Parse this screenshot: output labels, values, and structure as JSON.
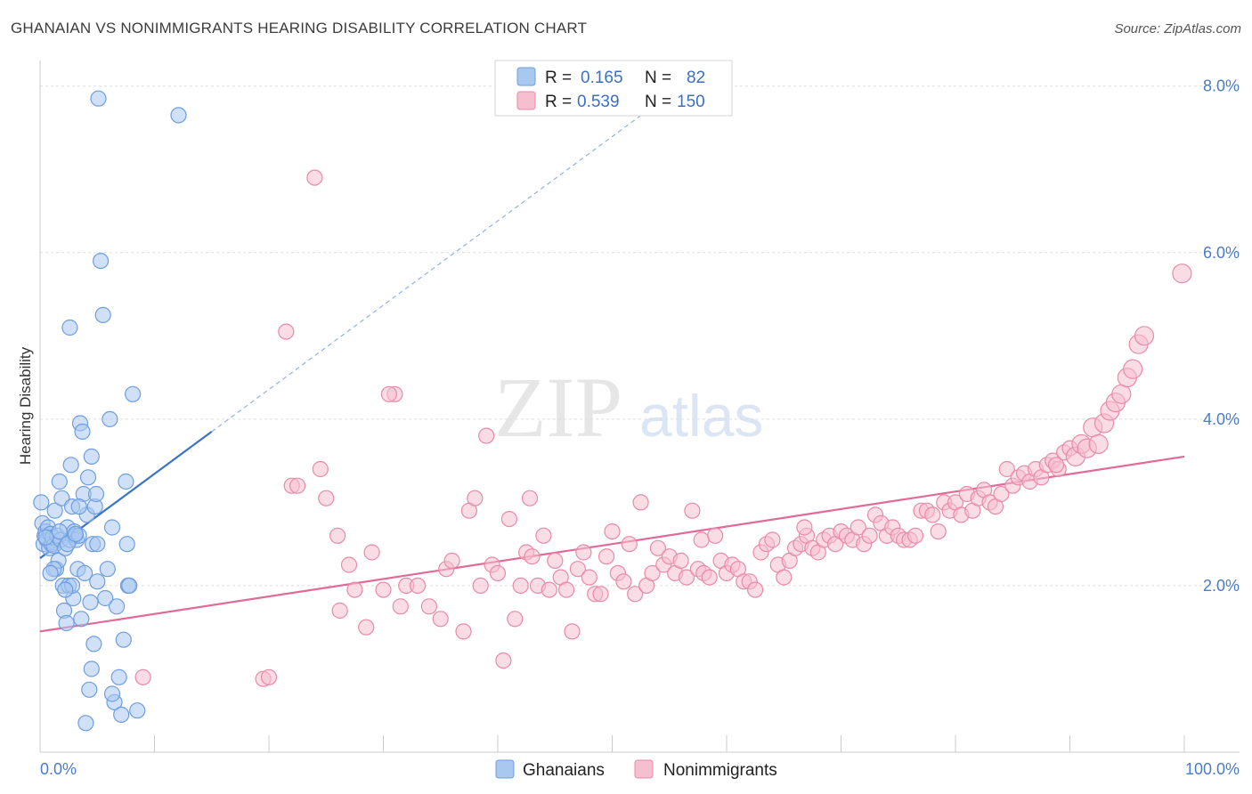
{
  "title": "GHANAIAN VS NONIMMIGRANTS HEARING DISABILITY CORRELATION CHART",
  "source": "Source: ZipAtlas.com",
  "watermark": {
    "zip": "ZIP",
    "atlas": "atlas"
  },
  "legend_top": [
    {
      "r_label": "R =",
      "r_value": "0.165",
      "n_label": "N =",
      "n_value": "82",
      "color": "#a9c8f0",
      "stroke": "#6e9de0"
    },
    {
      "r_label": "R =",
      "r_value": "0.539",
      "n_label": "N =",
      "n_value": "150",
      "color": "#f6bfd0",
      "stroke": "#e88aa8"
    }
  ],
  "legend_bottom": [
    {
      "label": "Ghanaians",
      "color": "#a9c8f0",
      "stroke": "#6e9de0"
    },
    {
      "label": "Nonimmigrants",
      "color": "#f6bfd0",
      "stroke": "#e88aa8"
    }
  ],
  "chart_data": {
    "type": "scatter",
    "title": "GHANAIAN VS NONIMMIGRANTS HEARING DISABILITY CORRELATION CHART",
    "xlabel": "",
    "ylabel": "Hearing Disability",
    "xlim": [
      0,
      100
    ],
    "ylim": [
      0,
      8.2
    ],
    "x_tick_labels": [
      "0.0%",
      "100.0%"
    ],
    "y_ticks": [
      2.0,
      4.0,
      6.0,
      8.0
    ],
    "y_tick_labels": [
      "2.0%",
      "4.0%",
      "6.0%",
      "8.0%"
    ],
    "grid": "horizontal dashed",
    "legend_position": "top-center",
    "series": [
      {
        "name": "Ghanaians",
        "color": "#a9c8f0",
        "stroke": "#6e9de0",
        "trend": {
          "x0": 0,
          "y0": 2.33,
          "x1": 15,
          "y1": 3.85,
          "dash_to_x": 55,
          "dash_to_y": 7.9,
          "color": "#3a74c8"
        },
        "points": [
          [
            0.1,
            3.0
          ],
          [
            0.2,
            2.75
          ],
          [
            0.3,
            2.5
          ],
          [
            0.4,
            2.6
          ],
          [
            0.5,
            2.65
          ],
          [
            0.6,
            2.55
          ],
          [
            0.7,
            2.7
          ],
          [
            0.8,
            2.45
          ],
          [
            0.9,
            2.62
          ],
          [
            1.0,
            2.5
          ],
          [
            1.1,
            2.58
          ],
          [
            1.2,
            2.48
          ],
          [
            1.3,
            2.9
          ],
          [
            1.4,
            2.2
          ],
          [
            1.5,
            2.6
          ],
          [
            1.6,
            2.3
          ],
          [
            1.7,
            3.25
          ],
          [
            1.8,
            2.55
          ],
          [
            1.9,
            3.05
          ],
          [
            2.0,
            2.0
          ],
          [
            2.1,
            1.7
          ],
          [
            2.2,
            2.45
          ],
          [
            2.3,
            1.55
          ],
          [
            2.4,
            2.7
          ],
          [
            2.5,
            2.0
          ],
          [
            2.6,
            2.55
          ],
          [
            2.7,
            3.45
          ],
          [
            2.8,
            2.95
          ],
          [
            2.9,
            1.85
          ],
          [
            3.0,
            2.65
          ],
          [
            3.1,
            2.6
          ],
          [
            3.2,
            2.55
          ],
          [
            3.3,
            2.2
          ],
          [
            3.4,
            2.6
          ],
          [
            3.5,
            3.95
          ],
          [
            3.6,
            1.6
          ],
          [
            3.7,
            3.85
          ],
          [
            3.8,
            3.1
          ],
          [
            3.9,
            2.15
          ],
          [
            4.0,
            0.35
          ],
          [
            4.1,
            2.85
          ],
          [
            4.2,
            3.3
          ],
          [
            4.3,
            0.75
          ],
          [
            4.4,
            1.8
          ],
          [
            4.5,
            3.55
          ],
          [
            4.6,
            2.5
          ],
          [
            4.7,
            1.3
          ],
          [
            4.8,
            2.95
          ],
          [
            4.9,
            3.1
          ],
          [
            5.0,
            2.05
          ],
          [
            5.1,
            7.85
          ],
          [
            5.3,
            5.9
          ],
          [
            5.5,
            5.25
          ],
          [
            5.7,
            1.85
          ],
          [
            5.9,
            2.2
          ],
          [
            6.1,
            4.0
          ],
          [
            6.3,
            2.7
          ],
          [
            6.5,
            0.6
          ],
          [
            6.7,
            1.75
          ],
          [
            6.9,
            0.9
          ],
          [
            7.1,
            0.45
          ],
          [
            7.3,
            1.35
          ],
          [
            7.5,
            3.25
          ],
          [
            7.6,
            2.5
          ],
          [
            7.7,
            2.0
          ],
          [
            7.8,
            2.0
          ],
          [
            8.1,
            4.3
          ],
          [
            8.5,
            0.5
          ],
          [
            12.1,
            7.65
          ],
          [
            2.6,
            5.1
          ],
          [
            4.5,
            1.0
          ],
          [
            3.4,
            2.95
          ],
          [
            1.2,
            2.2
          ],
          [
            2.8,
            2.0
          ],
          [
            0.9,
            2.15
          ],
          [
            1.7,
            2.65
          ],
          [
            2.4,
            2.5
          ],
          [
            3.1,
            2.62
          ],
          [
            0.5,
            2.58
          ],
          [
            6.3,
            0.7
          ],
          [
            2.2,
            1.95
          ],
          [
            5.0,
            2.5
          ]
        ]
      },
      {
        "name": "Nonimmigrants",
        "color": "#f6bfd0",
        "stroke": "#e88aa8",
        "trend": {
          "x0": 0,
          "y0": 1.45,
          "x1": 100,
          "y1": 3.55,
          "color": "#e06a98"
        },
        "points": [
          [
            9.0,
            0.9
          ],
          [
            19.5,
            0.88
          ],
          [
            21.5,
            5.05
          ],
          [
            22.0,
            3.2
          ],
          [
            24.0,
            6.9
          ],
          [
            24.5,
            3.4
          ],
          [
            25.0,
            3.05
          ],
          [
            26.0,
            2.6
          ],
          [
            26.2,
            1.7
          ],
          [
            27.0,
            2.25
          ],
          [
            27.5,
            1.95
          ],
          [
            28.5,
            1.5
          ],
          [
            29.0,
            2.4
          ],
          [
            30.0,
            1.95
          ],
          [
            31.0,
            4.3
          ],
          [
            31.5,
            1.75
          ],
          [
            32.0,
            2.0
          ],
          [
            33.0,
            2.0
          ],
          [
            34.0,
            1.75
          ],
          [
            35.0,
            1.6
          ],
          [
            35.5,
            2.2
          ],
          [
            36.0,
            2.3
          ],
          [
            37.0,
            1.45
          ],
          [
            37.5,
            2.9
          ],
          [
            38.0,
            3.05
          ],
          [
            38.5,
            2.0
          ],
          [
            39.0,
            3.8
          ],
          [
            39.5,
            2.25
          ],
          [
            40.0,
            2.15
          ],
          [
            40.5,
            1.1
          ],
          [
            41.0,
            2.8
          ],
          [
            41.5,
            1.6
          ],
          [
            42.0,
            2.0
          ],
          [
            42.5,
            2.4
          ],
          [
            43.0,
            2.35
          ],
          [
            43.5,
            2.0
          ],
          [
            44.0,
            2.6
          ],
          [
            44.5,
            1.95
          ],
          [
            45.0,
            2.3
          ],
          [
            45.5,
            2.1
          ],
          [
            46.0,
            1.95
          ],
          [
            46.5,
            1.45
          ],
          [
            47.0,
            2.2
          ],
          [
            47.5,
            2.4
          ],
          [
            48.0,
            2.1
          ],
          [
            48.5,
            1.9
          ],
          [
            49.0,
            1.9
          ],
          [
            49.5,
            2.35
          ],
          [
            50.0,
            2.65
          ],
          [
            50.5,
            2.15
          ],
          [
            51.0,
            2.05
          ],
          [
            51.5,
            2.5
          ],
          [
            52.0,
            1.9
          ],
          [
            52.5,
            3.0
          ],
          [
            53.0,
            2.0
          ],
          [
            53.5,
            2.15
          ],
          [
            54.0,
            2.45
          ],
          [
            54.5,
            2.25
          ],
          [
            55.0,
            2.35
          ],
          [
            55.5,
            2.15
          ],
          [
            56.0,
            2.3
          ],
          [
            56.5,
            2.1
          ],
          [
            57.0,
            2.9
          ],
          [
            57.5,
            2.2
          ],
          [
            58.0,
            2.15
          ],
          [
            58.5,
            2.1
          ],
          [
            59.0,
            2.6
          ],
          [
            59.5,
            2.3
          ],
          [
            60.0,
            2.15
          ],
          [
            60.5,
            2.25
          ],
          [
            61.0,
            2.2
          ],
          [
            61.5,
            2.05
          ],
          [
            62.0,
            2.05
          ],
          [
            62.5,
            1.95
          ],
          [
            63.0,
            2.4
          ],
          [
            63.5,
            2.5
          ],
          [
            64.0,
            2.55
          ],
          [
            64.5,
            2.25
          ],
          [
            65.0,
            2.1
          ],
          [
            65.5,
            2.3
          ],
          [
            66.0,
            2.45
          ],
          [
            66.5,
            2.5
          ],
          [
            67.0,
            2.6
          ],
          [
            67.5,
            2.45
          ],
          [
            68.0,
            2.4
          ],
          [
            68.5,
            2.55
          ],
          [
            69.0,
            2.6
          ],
          [
            69.5,
            2.5
          ],
          [
            70.0,
            2.65
          ],
          [
            70.5,
            2.6
          ],
          [
            71.0,
            2.55
          ],
          [
            71.5,
            2.7
          ],
          [
            72.0,
            2.5
          ],
          [
            72.5,
            2.6
          ],
          [
            73.0,
            2.85
          ],
          [
            73.5,
            2.75
          ],
          [
            74.0,
            2.6
          ],
          [
            74.5,
            2.7
          ],
          [
            75.0,
            2.6
          ],
          [
            75.5,
            2.55
          ],
          [
            76.0,
            2.55
          ],
          [
            76.5,
            2.6
          ],
          [
            77.0,
            2.9
          ],
          [
            77.5,
            2.9
          ],
          [
            78.0,
            2.85
          ],
          [
            78.5,
            2.65
          ],
          [
            79.0,
            3.0
          ],
          [
            79.5,
            2.9
          ],
          [
            80.0,
            3.0
          ],
          [
            80.5,
            2.85
          ],
          [
            81.0,
            3.1
          ],
          [
            81.5,
            2.9
          ],
          [
            82.0,
            3.05
          ],
          [
            82.5,
            3.15
          ],
          [
            83.0,
            3.0
          ],
          [
            83.5,
            2.95
          ],
          [
            84.0,
            3.1
          ],
          [
            84.5,
            3.4
          ],
          [
            85.0,
            3.2
          ],
          [
            85.5,
            3.3
          ],
          [
            86.0,
            3.35
          ],
          [
            86.5,
            3.25
          ],
          [
            87.0,
            3.4
          ],
          [
            87.5,
            3.3
          ],
          [
            88.0,
            3.45
          ],
          [
            88.5,
            3.5
          ],
          [
            89.0,
            3.4
          ],
          [
            89.5,
            3.6
          ],
          [
            90.0,
            3.65
          ],
          [
            90.5,
            3.55
          ],
          [
            91.0,
            3.7
          ],
          [
            91.5,
            3.65
          ],
          [
            92.0,
            3.9
          ],
          [
            92.5,
            3.7
          ],
          [
            93.0,
            3.95
          ],
          [
            93.5,
            4.1
          ],
          [
            94.0,
            4.2
          ],
          [
            94.5,
            4.3
          ],
          [
            95.0,
            4.5
          ],
          [
            95.5,
            4.6
          ],
          [
            96.0,
            4.9
          ],
          [
            96.5,
            5.0
          ],
          [
            99.8,
            5.75
          ],
          [
            20.0,
            0.9
          ],
          [
            22.5,
            3.2
          ],
          [
            30.5,
            4.3
          ],
          [
            42.8,
            3.05
          ],
          [
            57.8,
            2.55
          ],
          [
            66.8,
            2.7
          ],
          [
            88.8,
            3.45
          ]
        ]
      }
    ]
  }
}
